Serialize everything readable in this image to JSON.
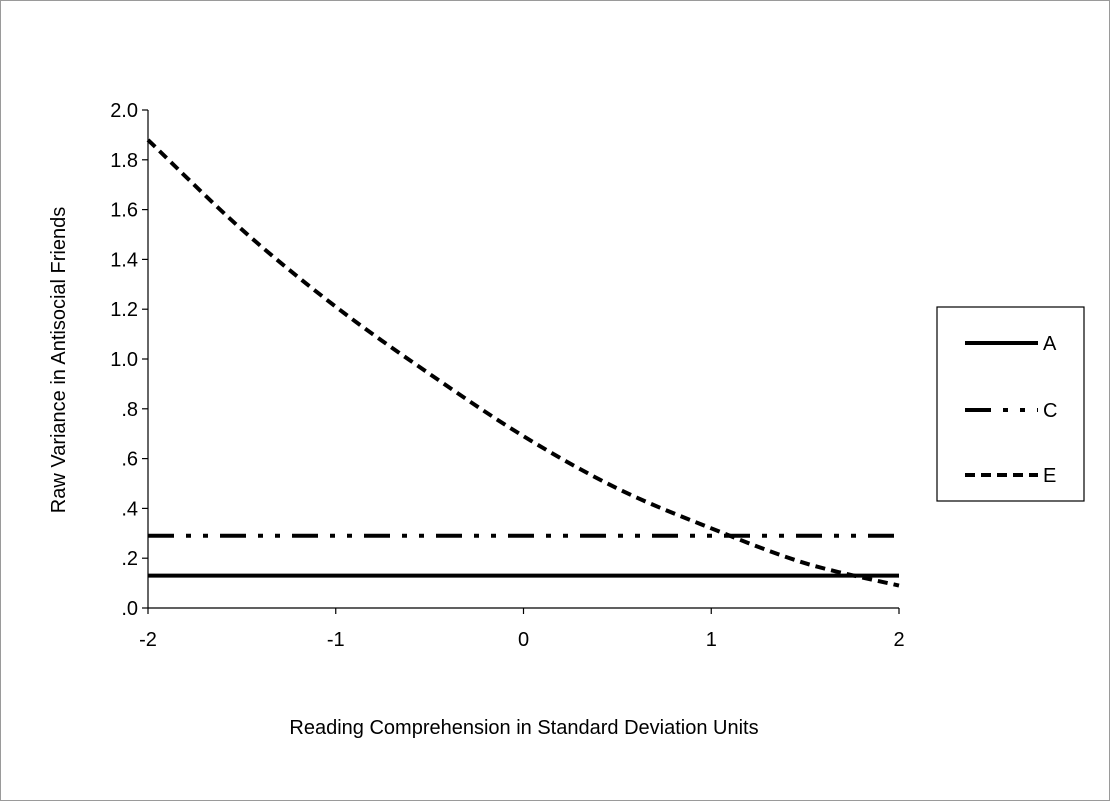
{
  "chart_data": {
    "type": "line",
    "title": "",
    "xlabel": "Reading Comprehension in Standard Deviation Units",
    "ylabel": "Raw Variance in Antisocial Friends",
    "xlim": [
      -2,
      2
    ],
    "ylim": [
      0,
      2.0
    ],
    "x_ticks": [
      -2,
      -1,
      0,
      1,
      2
    ],
    "x_tick_labels": [
      "-2",
      "-1",
      "0",
      "1",
      "2"
    ],
    "y_ticks": [
      0,
      0.2,
      0.4,
      0.6,
      0.8,
      1.0,
      1.2,
      1.4,
      1.6,
      1.8,
      2.0
    ],
    "y_tick_labels": [
      ".0",
      ".2",
      ".4",
      ".6",
      ".8",
      "1.0",
      "1.2",
      "1.4",
      "1.6",
      "1.8",
      "2.0"
    ],
    "grid": false,
    "legend_position": "right",
    "series": [
      {
        "name": "A",
        "style": "solid",
        "color": "#000000",
        "x": [
          -2,
          2
        ],
        "y": [
          0.13,
          0.13
        ]
      },
      {
        "name": "C",
        "style": "dash-dot-dot",
        "color": "#000000",
        "x": [
          -2,
          2
        ],
        "y": [
          0.29,
          0.29
        ]
      },
      {
        "name": "E",
        "style": "dashed",
        "color": "#000000",
        "x": [
          -2,
          -1.5,
          -1,
          -0.5,
          0,
          0.5,
          1,
          1.5,
          2
        ],
        "y": [
          1.88,
          1.52,
          1.21,
          0.94,
          0.69,
          0.48,
          0.32,
          0.18,
          0.09
        ]
      }
    ]
  }
}
